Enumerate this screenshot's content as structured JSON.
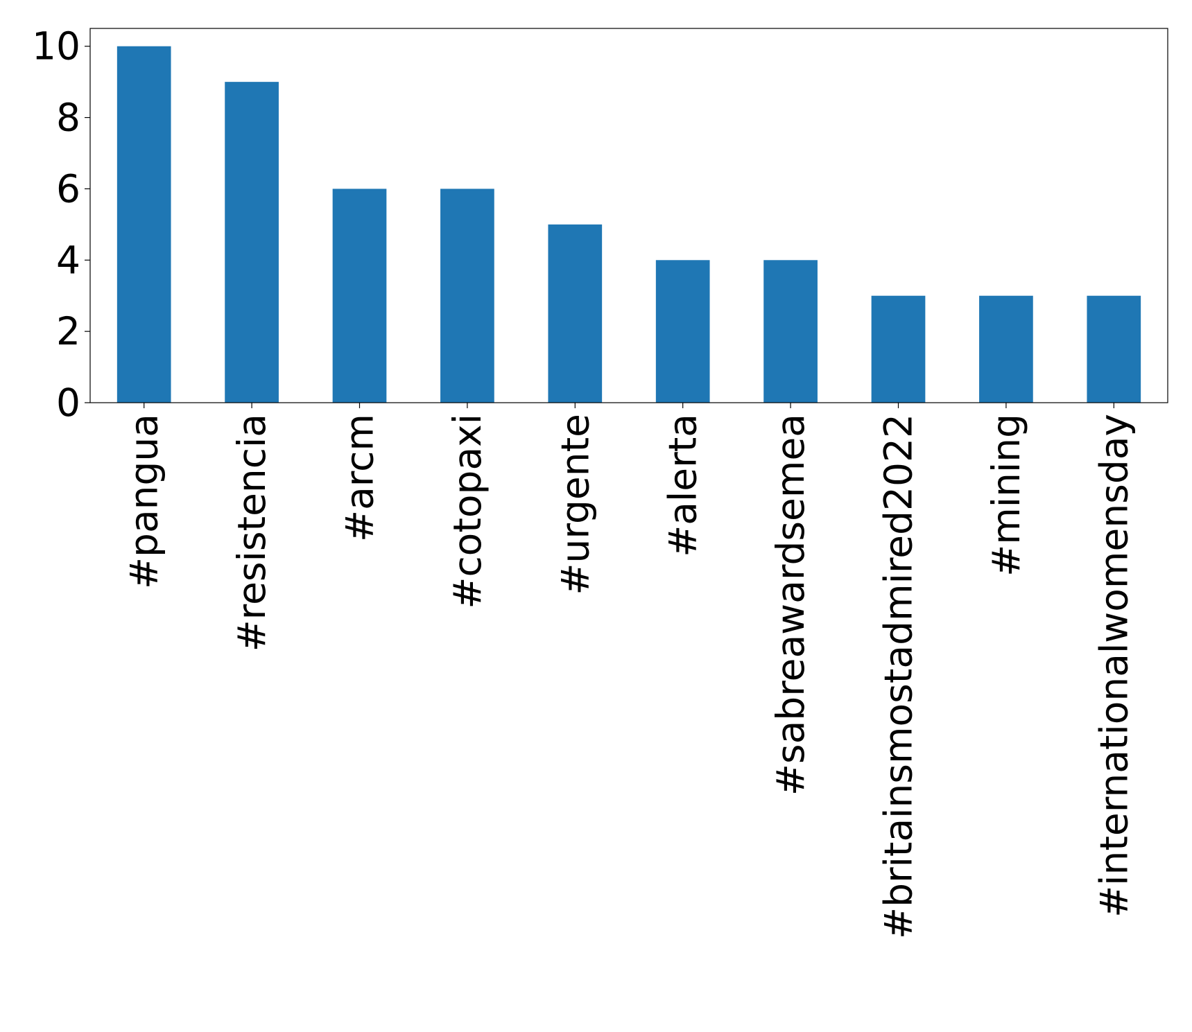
{
  "chart_data": {
    "type": "bar",
    "categories": [
      "#pangua",
      "#resistencia",
      "#arcm",
      "#cotopaxi",
      "#urgente",
      "#alerta",
      "#sabreawardsemea",
      "#britainsmostadmired2022",
      "#mining",
      "#internationalwomensday"
    ],
    "values": [
      10,
      9,
      6,
      6,
      5,
      4,
      4,
      3,
      3,
      3
    ],
    "color": "#1f77b4",
    "ylim": [
      0,
      10.5
    ],
    "yticks": [
      0,
      2,
      4,
      6,
      8,
      10
    ],
    "grid": false
  }
}
